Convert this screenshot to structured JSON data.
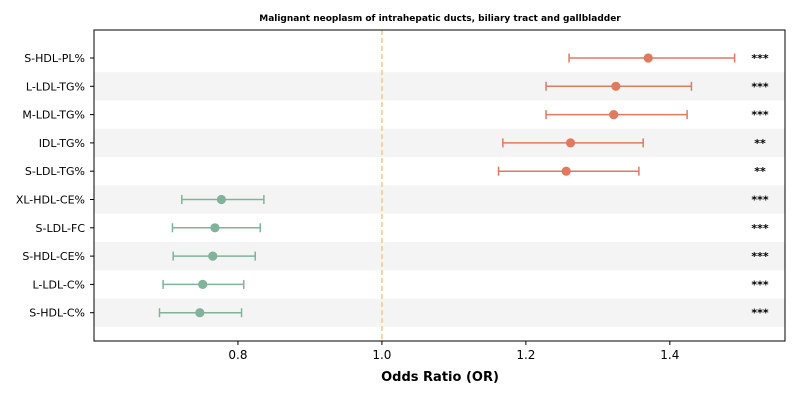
{
  "chart_data": {
    "type": "forest",
    "title": "Malignant neoplasm of intrahepatic ducts, biliary tract and gallbladder",
    "xlabel": "Odds Ratio (OR)",
    "xlim": [
      0.6,
      1.56
    ],
    "xticks": [
      "0.8",
      "1.0",
      "1.2",
      "1.4"
    ],
    "xtick_values": [
      0.8,
      1.0,
      1.2,
      1.4
    ],
    "reference_line": 1.0,
    "colors": {
      "risk": "#e07a5f",
      "protective": "#81b29a",
      "reference": "#f2cc8f",
      "band": "#f4f4f4"
    },
    "rows": [
      {
        "label": "S-HDL-PL%",
        "or": 1.37,
        "lower": 1.26,
        "upper": 1.49,
        "sig": "***",
        "group": "risk"
      },
      {
        "label": "L-LDL-TG%",
        "or": 1.325,
        "lower": 1.228,
        "upper": 1.43,
        "sig": "***",
        "group": "risk"
      },
      {
        "label": "M-LDL-TG%",
        "or": 1.322,
        "lower": 1.228,
        "upper": 1.424,
        "sig": "***",
        "group": "risk"
      },
      {
        "label": "IDL-TG%",
        "or": 1.262,
        "lower": 1.168,
        "upper": 1.363,
        "sig": "**",
        "group": "risk"
      },
      {
        "label": "S-LDL-TG%",
        "or": 1.256,
        "lower": 1.162,
        "upper": 1.357,
        "sig": "**",
        "group": "risk"
      },
      {
        "label": "XL-HDL-CE%",
        "or": 0.777,
        "lower": 0.722,
        "upper": 0.836,
        "sig": "***",
        "group": "protective"
      },
      {
        "label": "S-LDL-FC",
        "or": 0.768,
        "lower": 0.709,
        "upper": 0.831,
        "sig": "***",
        "group": "protective"
      },
      {
        "label": "S-HDL-CE%",
        "or": 0.765,
        "lower": 0.71,
        "upper": 0.824,
        "sig": "***",
        "group": "protective"
      },
      {
        "label": "L-LDL-C%",
        "or": 0.751,
        "lower": 0.696,
        "upper": 0.808,
        "sig": "***",
        "group": "protective"
      },
      {
        "label": "S-HDL-C%",
        "or": 0.747,
        "lower": 0.691,
        "upper": 0.805,
        "sig": "***",
        "group": "protective"
      }
    ]
  }
}
